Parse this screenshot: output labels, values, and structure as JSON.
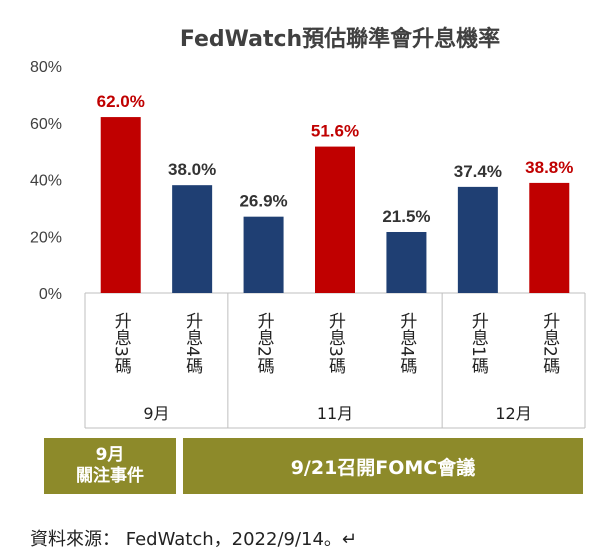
{
  "chart_data": {
    "type": "bar",
    "title": "FedWatch預估聯準會升息機率",
    "categories": [
      "升息3碼",
      "升息4碼",
      "升息2碼",
      "升息3碼",
      "升息4碼",
      "升息1碼",
      "升息2碼"
    ],
    "groups": [
      {
        "label": "9月",
        "count": 2
      },
      {
        "label": "11月",
        "count": 3
      },
      {
        "label": "12月",
        "count": 2
      }
    ],
    "values": [
      62.0,
      38.0,
      26.9,
      51.6,
      21.5,
      37.4,
      38.8
    ],
    "value_labels": [
      "62.0%",
      "38.0%",
      "26.9%",
      "51.6%",
      "21.5%",
      "37.4%",
      "38.8%"
    ],
    "highlight": [
      true,
      false,
      false,
      true,
      false,
      false,
      true
    ],
    "yticks": [
      0,
      20,
      40,
      60,
      80
    ],
    "ytick_labels": [
      "0%",
      "20%",
      "40%",
      "60%",
      "80%"
    ],
    "ylim": [
      0,
      80
    ],
    "grid": false,
    "colors": {
      "highlight": "#c00000",
      "normal": "#1f3f73",
      "highlight_label": "#c00000",
      "normal_label": "#333333"
    }
  },
  "annotations": {
    "event_line1": "9月",
    "event_line2": "關注事件",
    "fomc": "9/21召開FOMC會議",
    "box_color": "#8d8a2a"
  },
  "source": "資料來源： FedWatch，2022/9/14。↵"
}
